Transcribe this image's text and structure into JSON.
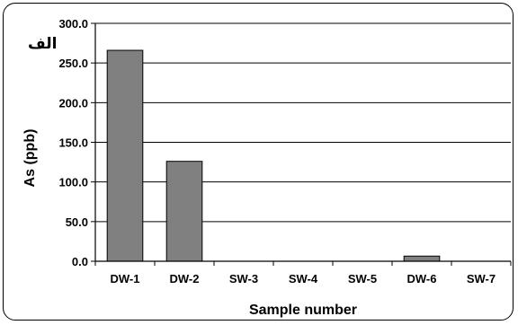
{
  "chart_data": {
    "type": "bar",
    "panel_label": "الف",
    "title": "",
    "xlabel": "Sample number",
    "ylabel": "As (ppb)",
    "categories": [
      "DW-1",
      "DW-2",
      "SW-3",
      "SW-4",
      "SW-5",
      "DW-6",
      "SW-7"
    ],
    "values": [
      266.0,
      126.0,
      0.0,
      0.0,
      0.0,
      6.5,
      0.0
    ],
    "ylim": [
      0,
      300
    ],
    "yticks": [
      "0.0",
      "50.0",
      "100.0",
      "150.0",
      "200.0",
      "250.0",
      "300.0"
    ],
    "ytick_values": [
      0,
      50,
      100,
      150,
      200,
      250,
      300
    ],
    "grid": true,
    "legend": "none",
    "bar_color": "#808080"
  }
}
